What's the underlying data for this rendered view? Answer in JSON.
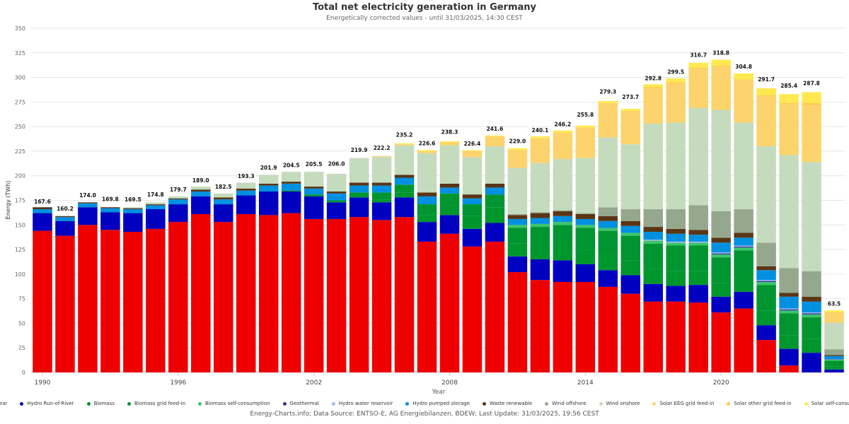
{
  "title": "Total net electricity generation in Germany",
  "subtitle": "Energetically corrected values - until 31/03/2025, 14:30 CEST",
  "source": "Energy-Charts.info; Data Source: ENTSO-E, AG Energiebilanzen, BDEW; Last Update: 31/03/2025, 19:56 CEST",
  "chart_data": {
    "type": "bar",
    "stacked": true,
    "title": "Total net electricity generation in Germany",
    "subtitle": "Energetically corrected values - until 31/03/2025, 14:30 CEST",
    "xlabel": "Year",
    "ylabel": "Energy (TWh)",
    "ylim": [
      0,
      350
    ],
    "yticks": [
      0,
      25,
      50,
      75,
      100,
      125,
      150,
      175,
      200,
      225,
      250,
      275,
      300,
      325,
      350
    ],
    "xtick_labels": [
      "1990",
      "1996",
      "2002",
      "2008",
      "2014",
      "2020"
    ],
    "grid": true,
    "legend_position": "bottom",
    "categories": [
      "1990",
      "1991",
      "1992",
      "1993",
      "1994",
      "1995",
      "1996",
      "1997",
      "1998",
      "1999",
      "2000",
      "2001",
      "2002",
      "2003",
      "2004",
      "2005",
      "2006",
      "2007",
      "2008",
      "2009",
      "2010",
      "2011",
      "2012",
      "2013",
      "2014",
      "2015",
      "2016",
      "2017",
      "2018",
      "2019",
      "2020",
      "2021",
      "2022",
      "2023",
      "2024",
      "2025"
    ],
    "totals": [
      167.6,
      160.2,
      174.0,
      169.8,
      169.5,
      174.8,
      179.7,
      189.0,
      182.5,
      193.3,
      201.9,
      204.5,
      205.5,
      206.0,
      219.9,
      222.2,
      235.2,
      226.6,
      238.3,
      226.4,
      241.6,
      229.0,
      240.1,
      246.2,
      255.8,
      279.3,
      273.7,
      292.8,
      299.5,
      316.7,
      318.8,
      304.8,
      291.7,
      285.4,
      287.8,
      63.5
    ],
    "series": [
      {
        "name": "Nuclear",
        "color": "#ee0000",
        "values": [
          144,
          139,
          150,
          145,
          143,
          146,
          153,
          161,
          153,
          161,
          160,
          162,
          156,
          156,
          158,
          155,
          158,
          133,
          141,
          128,
          133,
          102,
          94,
          92,
          92,
          87,
          80,
          72,
          72,
          71,
          61,
          65,
          33,
          7,
          0,
          0
        ]
      },
      {
        "name": "Hydro Run-of-River",
        "color": "#0000c0",
        "values": [
          18,
          15,
          18,
          18,
          19,
          20,
          18,
          18,
          18,
          19,
          24,
          22,
          23,
          17,
          20,
          18,
          20,
          20,
          19,
          18,
          19,
          16,
          21,
          22,
          18,
          17,
          19,
          18,
          16,
          18,
          16,
          17,
          15,
          17,
          20,
          3
        ]
      },
      {
        "name": "Biomass",
        "color": "#00962e",
        "values": [
          0,
          0,
          0,
          0,
          0,
          0,
          0,
          0,
          0,
          0,
          0,
          1,
          2,
          2,
          2,
          3,
          5,
          7,
          10,
          13,
          16,
          13,
          14,
          15,
          15,
          16,
          15,
          15,
          15,
          14,
          14,
          15,
          15,
          14,
          14,
          3
        ]
      },
      {
        "name": "Biomass grid feed-in",
        "color": "#009530",
        "values": [
          0,
          0,
          0,
          0,
          0,
          0,
          0,
          0,
          0,
          0,
          0,
          0,
          0,
          0,
          3,
          7,
          8,
          11,
          12,
          12,
          13,
          16,
          19,
          21,
          22,
          24,
          25,
          26,
          26,
          26,
          26,
          27,
          26,
          22,
          22,
          6
        ]
      },
      {
        "name": "Biomass self-consumption",
        "color": "#3cc46c",
        "values": [
          0,
          0,
          0,
          0,
          0,
          0,
          0,
          0,
          0,
          0,
          0,
          0,
          0,
          0,
          0,
          0,
          0,
          0,
          0,
          0,
          0,
          3,
          3,
          3,
          3,
          3,
          3,
          3,
          3,
          3,
          3,
          3,
          3,
          3,
          3,
          1
        ]
      },
      {
        "name": "Geothermal",
        "color": "#333399",
        "values": [
          0,
          0,
          0,
          0,
          0,
          0,
          0,
          0,
          0,
          0,
          0,
          0,
          0,
          0,
          0,
          0,
          0,
          0,
          0,
          0,
          0,
          0,
          0,
          0,
          0,
          0,
          0,
          0,
          0,
          0,
          1,
          1,
          1,
          1,
          1,
          0.3
        ]
      },
      {
        "name": "Hydro water reservoir",
        "color": "#a6b8ec",
        "values": [
          0,
          0,
          0,
          0,
          0,
          0,
          0,
          0,
          0,
          0,
          0,
          0,
          0,
          0,
          0,
          0,
          0,
          0,
          0,
          0,
          0,
          0,
          0,
          0,
          0,
          0,
          0,
          1,
          1,
          1,
          1,
          1,
          1,
          1,
          1,
          0.3
        ]
      },
      {
        "name": "Hydro pumped storage",
        "color": "#0090e0",
        "values": [
          4,
          4,
          4,
          4,
          4,
          4,
          5,
          5,
          5,
          5,
          6,
          7,
          6,
          7,
          7,
          7,
          7,
          8,
          6,
          6,
          7,
          6,
          6,
          6,
          6,
          7,
          7,
          8,
          8,
          7,
          10,
          8,
          10,
          12,
          11,
          3
        ]
      },
      {
        "name": "Waste renewable",
        "color": "#5a3616",
        "values": [
          2,
          1,
          1,
          1,
          1,
          1,
          1,
          2,
          2,
          2,
          2,
          2,
          2,
          2,
          3,
          3,
          3,
          4,
          4,
          4,
          4,
          4,
          5,
          5,
          5,
          5,
          5,
          5,
          5,
          5,
          5,
          5,
          4,
          4,
          5,
          1
        ]
      },
      {
        "name": "Wind offshore",
        "color": "#95a88e",
        "values": [
          0,
          0,
          0,
          0,
          0,
          0,
          0,
          0,
          0,
          0,
          0,
          0,
          0,
          0,
          0,
          0,
          0,
          0,
          0,
          0,
          0,
          1,
          1,
          1,
          1,
          9,
          12,
          18,
          20,
          25,
          27,
          24,
          24,
          25,
          26,
          6
        ]
      },
      {
        "name": "Wind onshore",
        "color": "#c5dbbd",
        "values": [
          0,
          0,
          0,
          0,
          1,
          2,
          2,
          3,
          4,
          6,
          9,
          10,
          15,
          18,
          25,
          26,
          30,
          40,
          39,
          38,
          38,
          47,
          50,
          52,
          56,
          71,
          66,
          87,
          88,
          99,
          103,
          88,
          98,
          115,
          111,
          27
        ]
      },
      {
        "name": "Solar EEG grid feed-in",
        "color": "#fdd36d",
        "values": [
          0,
          0,
          0,
          0,
          0,
          0,
          0,
          0,
          0,
          0,
          0,
          0,
          0,
          0,
          0,
          1,
          1,
          2,
          3,
          6,
          10,
          18,
          25,
          27,
          31,
          35,
          34,
          36,
          40,
          40,
          44,
          43,
          51,
          52,
          58,
          10
        ]
      },
      {
        "name": "Solar other grid feed-in",
        "color": "#ffc94c",
        "values": [
          0,
          0,
          0,
          0,
          0,
          0,
          0,
          0,
          0,
          0,
          0,
          0,
          0,
          0,
          0,
          0,
          0,
          0,
          0,
          0,
          0,
          0,
          0,
          0,
          0,
          0,
          0,
          1,
          1,
          1,
          1,
          1,
          1,
          1,
          2,
          0.5
        ]
      },
      {
        "name": "Solar self-consumption",
        "color": "#ffe94f",
        "values": [
          0,
          0,
          0,
          0,
          0,
          0,
          0,
          0,
          0,
          0,
          0,
          0,
          0,
          0,
          0,
          0,
          1,
          1,
          1,
          1,
          1,
          2,
          2,
          2,
          2,
          2,
          2,
          3,
          4,
          5,
          6,
          6,
          7,
          9,
          11,
          2
        ]
      }
    ]
  }
}
